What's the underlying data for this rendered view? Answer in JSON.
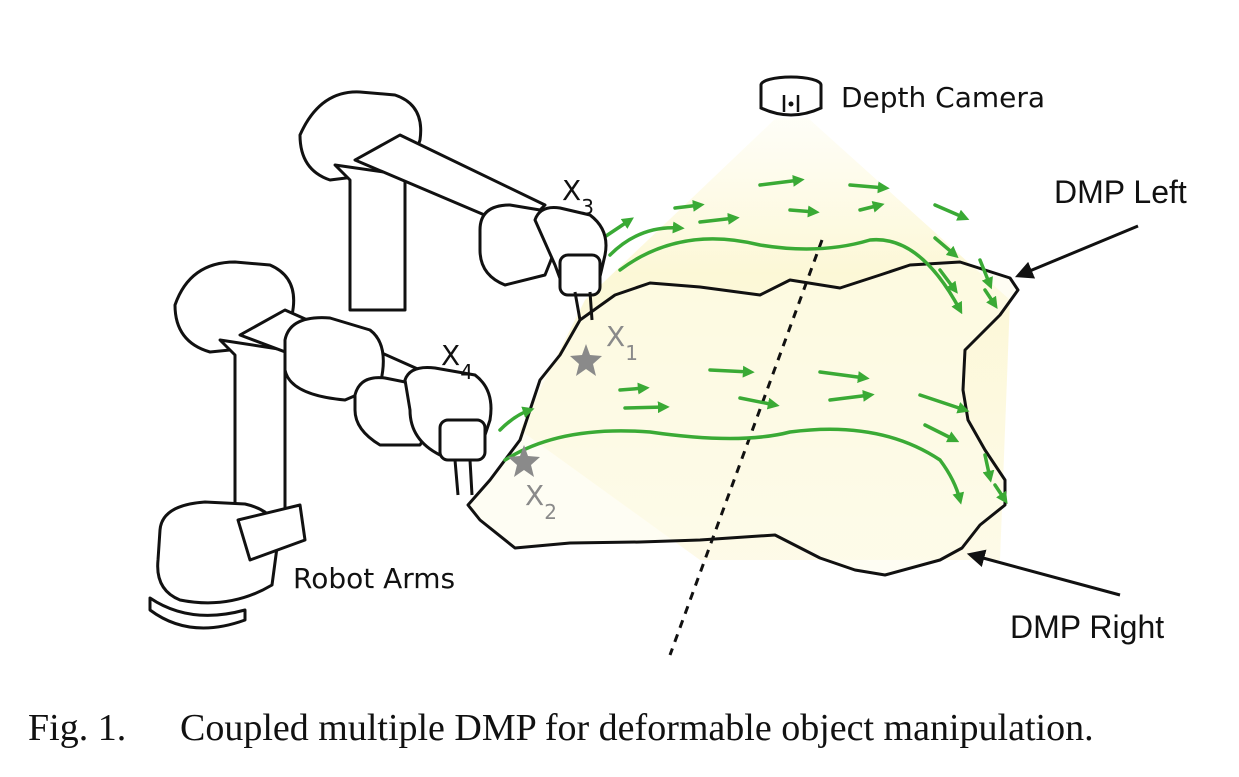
{
  "labels": {
    "depth_camera": "Depth Camera",
    "dmp_left": "DMP Left",
    "dmp_right": "DMP Right",
    "robot_arms": "Robot Arms",
    "x1": {
      "main": "X",
      "sub": "1"
    },
    "x2": {
      "main": "X",
      "sub": "2"
    },
    "x3": {
      "main": "X",
      "sub": "3"
    },
    "x4": {
      "main": "X",
      "sub": "4"
    }
  },
  "caption": {
    "number": "Fig. 1.",
    "text": "Coupled multiple DMP for deformable object manipulation."
  },
  "colors": {
    "trajectory": "#3aaa35",
    "camera_cone": "#fdf9dc",
    "outline": "#111111",
    "marker": "#8a8a8a"
  }
}
